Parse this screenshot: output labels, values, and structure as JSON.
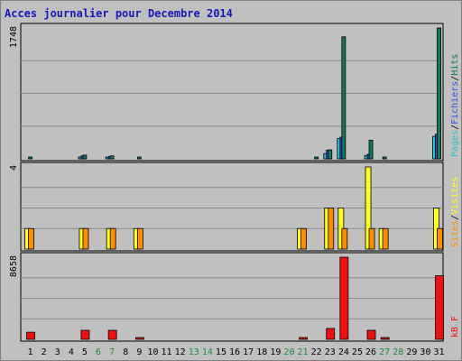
{
  "chart_data": {
    "type": "bar",
    "title": "Acces journalier pour Decembre 2014",
    "categories": [
      "1",
      "2",
      "3",
      "4",
      "5",
      "6",
      "7",
      "8",
      "9",
      "10",
      "11",
      "12",
      "13",
      "14",
      "15",
      "16",
      "17",
      "18",
      "19",
      "20",
      "21",
      "22",
      "23",
      "24",
      "25",
      "26",
      "27",
      "28",
      "29",
      "30",
      "31"
    ],
    "weekend_days": [
      "6",
      "7",
      "13",
      "14",
      "20",
      "21",
      "27",
      "28"
    ],
    "panels": [
      {
        "id": "pages-files-hits",
        "max_label": "1748",
        "ymax": 1748,
        "series": [
          {
            "name": "Pages",
            "color": "#2fbfd0",
            "values": [
              0,
              0,
              0,
              0,
              20,
              0,
              18,
              0,
              0,
              0,
              0,
              0,
              0,
              0,
              0,
              0,
              0,
              0,
              0,
              0,
              0,
              0,
              70,
              270,
              0,
              45,
              0,
              0,
              0,
              0,
              300
            ]
          },
          {
            "name": "Fichiers",
            "color": "#3050e0",
            "values": [
              0,
              0,
              0,
              0,
              40,
              0,
              30,
              0,
              0,
              0,
              0,
              0,
              0,
              0,
              0,
              0,
              0,
              0,
              0,
              0,
              0,
              0,
              115,
              290,
              0,
              60,
              0,
              0,
              0,
              0,
              330
            ]
          },
          {
            "name": "Hits",
            "color": "#0f7a5e",
            "values": [
              16,
              0,
              0,
              0,
              50,
              0,
              40,
              0,
              14,
              0,
              0,
              0,
              0,
              0,
              0,
              0,
              0,
              0,
              0,
              0,
              0,
              14,
              120,
              1630,
              0,
              250,
              16,
              0,
              0,
              0,
              1748
            ]
          }
        ],
        "legend": [
          {
            "text": "Pages",
            "color": "#2fbfd0"
          },
          {
            "text": "/",
            "color": "#000000"
          },
          {
            "text": "Fichiers",
            "color": "#3050e0"
          },
          {
            "text": "/",
            "color": "#000000"
          },
          {
            "text": "Hits",
            "color": "#0f7a5e"
          }
        ]
      },
      {
        "id": "visits-sites",
        "max_label": "4",
        "ymax": 4,
        "series": [
          {
            "name": "Visites",
            "color": "#ffff20",
            "values": [
              1,
              0,
              0,
              0,
              1,
              0,
              1,
              0,
              1,
              0,
              0,
              0,
              0,
              0,
              0,
              0,
              0,
              0,
              0,
              0,
              1,
              0,
              2,
              2,
              0,
              4,
              1,
              0,
              0,
              0,
              2
            ]
          },
          {
            "name": "Sites",
            "color": "#ff8c00",
            "values": [
              1,
              0,
              0,
              0,
              1,
              0,
              1,
              0,
              1,
              0,
              0,
              0,
              0,
              0,
              0,
              0,
              0,
              0,
              0,
              0,
              1,
              0,
              2,
              1,
              0,
              1,
              1,
              0,
              0,
              0,
              1
            ]
          }
        ],
        "legend": [
          {
            "text": "Sites",
            "color": "#ff8c00"
          },
          {
            "text": "/",
            "color": "#000000"
          },
          {
            "text": "Visites",
            "color": "#ffff20"
          }
        ]
      },
      {
        "id": "kb",
        "max_label": "8658",
        "ymax": 8658,
        "series": [
          {
            "name": "kB F",
            "color": "#ee1111",
            "values": [
              750,
              0,
              0,
              0,
              950,
              0,
              950,
              0,
              110,
              0,
              0,
              0,
              0,
              0,
              0,
              0,
              0,
              0,
              0,
              0,
              130,
              0,
              1150,
              8658,
              0,
              950,
              110,
              0,
              0,
              0,
              6700
            ]
          }
        ],
        "legend": [
          {
            "text": "kB F",
            "color": "#ee1111"
          }
        ]
      }
    ]
  }
}
